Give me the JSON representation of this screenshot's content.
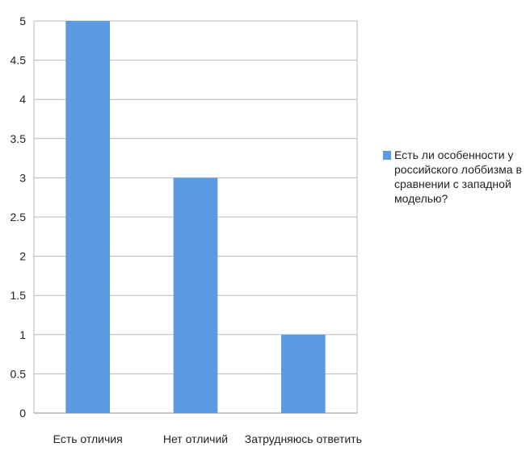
{
  "chart_data": {
    "type": "bar",
    "categories": [
      "Есть отличия",
      "Нет отличий",
      "Затрудняюсь ответить"
    ],
    "series": [
      {
        "name": "Есть ли особенности у российского лоббизма в сравнении с западной моделью?",
        "values": [
          5,
          3,
          1
        ]
      }
    ],
    "yticks": [
      "0",
      "0.5",
      "1",
      "1.5",
      "2",
      "2.5",
      "3",
      "3.5",
      "4",
      "4.5",
      "5"
    ],
    "ylim": [
      0,
      5
    ],
    "grid": true,
    "legend_position": "right",
    "colors": {
      "bar": "#5b9be3",
      "grid": "#b9b9b9",
      "axis": "#8c8c8c",
      "legend_swatch": "#5b9be3"
    },
    "legend_lines": [
      "Есть ли особенности у",
      "российского лоббизма в",
      "сравнении с западной",
      "моделью?"
    ]
  }
}
